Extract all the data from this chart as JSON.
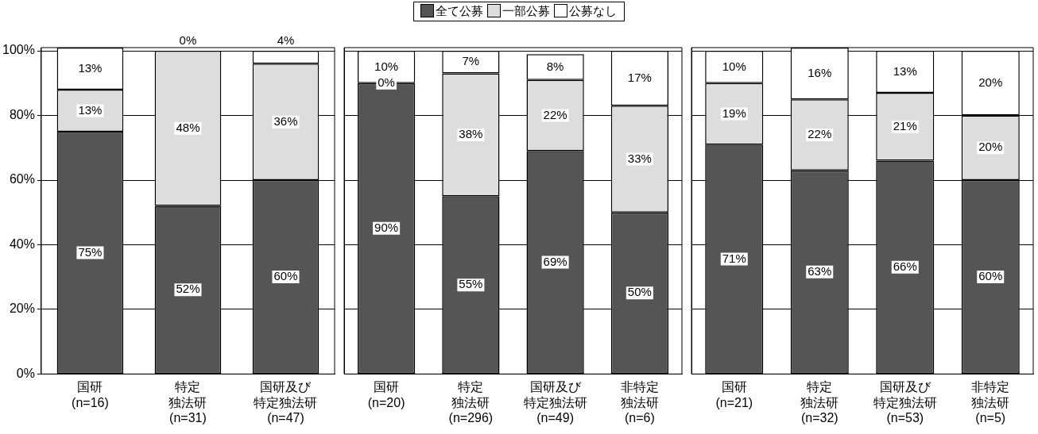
{
  "chart_data": [
    {
      "type": "bar",
      "stacked": true,
      "legend": "top",
      "categories": [
        "国研(n=16)",
        "特定独法研(n=31)",
        "国研及び特定独法研(n=47)"
      ],
      "series": [
        {
          "name": "全て公募",
          "color": "#555555",
          "values": [
            75,
            52,
            60
          ],
          "value_labels": [
            "75%",
            "52%",
            "60%"
          ]
        },
        {
          "name": "一部公募",
          "color": "#dddddd",
          "values": [
            13,
            48,
            36
          ],
          "value_labels": [
            "13%",
            "48%",
            "36%"
          ]
        },
        {
          "name": "公募なし",
          "color": "#ffffff",
          "values": [
            13,
            0,
            4
          ],
          "value_labels": [
            "13%",
            "0%",
            "4%"
          ]
        }
      ],
      "ylim": [
        0,
        101
      ],
      "yticks": [
        {
          "value": 0,
          "label": "0%"
        },
        {
          "value": 20,
          "label": "20%"
        },
        {
          "value": 40,
          "label": "40%"
        },
        {
          "value": 60,
          "label": "60%"
        },
        {
          "value": 80,
          "label": "80%"
        },
        {
          "value": 100,
          "label": "100%"
        }
      ],
      "grid": "y"
    },
    {
      "type": "bar",
      "stacked": true,
      "categories": [
        "国研(n=20)",
        "特定独法研(n=296)",
        "国研及び特定独法研(n=49)",
        "非特定独法研(n=6)"
      ],
      "series": [
        {
          "color": "#555555",
          "values": [
            90,
            55,
            69,
            50
          ],
          "value_labels": [
            "90%",
            "55%",
            "69%",
            "50%"
          ]
        },
        {
          "color": "#dddddd",
          "values": [
            0,
            38,
            22,
            33
          ],
          "value_labels": [
            "0%",
            "38%",
            "22%",
            "33%"
          ]
        },
        {
          "color": "#ffffff",
          "values": [
            10,
            7,
            8,
            17
          ],
          "value_labels": [
            "10%",
            "7%",
            "8%",
            "17%"
          ]
        }
      ],
      "ylim": [
        0,
        101
      ],
      "yticks": [
        0,
        20,
        40,
        60,
        80,
        100
      ],
      "tick_labels": "x",
      "grid": "y"
    },
    {
      "type": "bar",
      "stacked": true,
      "categories": [
        "国研(n=21)",
        "特定独法研(n=32)",
        "国研及び特定独法研(n=53)",
        "非特定独法研(n=5)"
      ],
      "series": [
        {
          "color": "#555555",
          "values": [
            71,
            63,
            66,
            60
          ],
          "value_labels": [
            "71%",
            "63%",
            "66%",
            "60%"
          ]
        },
        {
          "color": "#dddddd",
          "values": [
            19,
            22,
            21,
            20
          ],
          "value_labels": [
            "19%",
            "22%",
            "21%",
            "20%"
          ]
        },
        {
          "color": "#ffffff",
          "values": [
            10,
            16,
            13,
            20
          ],
          "value_labels": [
            "10%",
            "16%",
            "13%",
            "20%"
          ]
        }
      ],
      "ylim": [
        0,
        101
      ],
      "yticks": [
        0,
        20,
        40,
        60,
        80,
        100
      ],
      "tick_labels": "x",
      "grid": "y"
    }
  ]
}
